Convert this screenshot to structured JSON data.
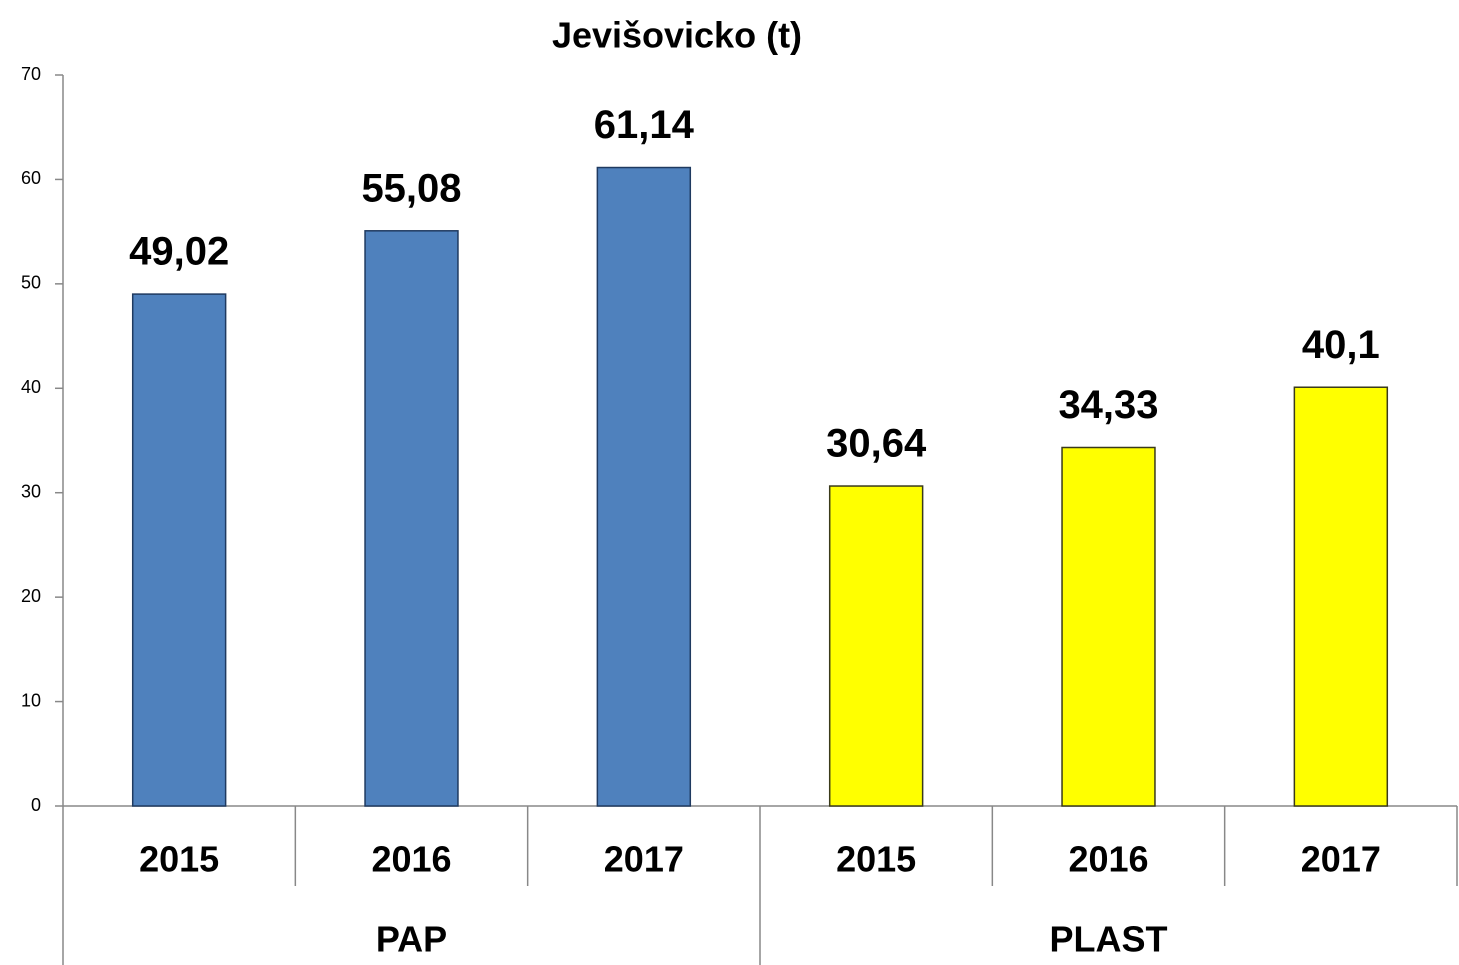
{
  "chart_data": {
    "type": "bar",
    "title": "Jevišovicko (t)",
    "groups": [
      {
        "name": "PAP",
        "color": "#4f81bd",
        "categories": [
          "2015",
          "2016",
          "2017"
        ],
        "values": [
          49.02,
          55.08,
          61.14
        ],
        "value_labels": [
          "49,02",
          "55,08",
          "61,14"
        ]
      },
      {
        "name": "PLAST",
        "color": "#ffff00",
        "categories": [
          "2015",
          "2016",
          "2017"
        ],
        "values": [
          30.64,
          34.33,
          40.1
        ],
        "value_labels": [
          "30,64",
          "34,33",
          "40,1"
        ]
      }
    ],
    "ylim": [
      0,
      70
    ],
    "yticks": [
      0,
      10,
      20,
      30,
      40,
      50,
      60,
      70
    ],
    "grid": false
  }
}
